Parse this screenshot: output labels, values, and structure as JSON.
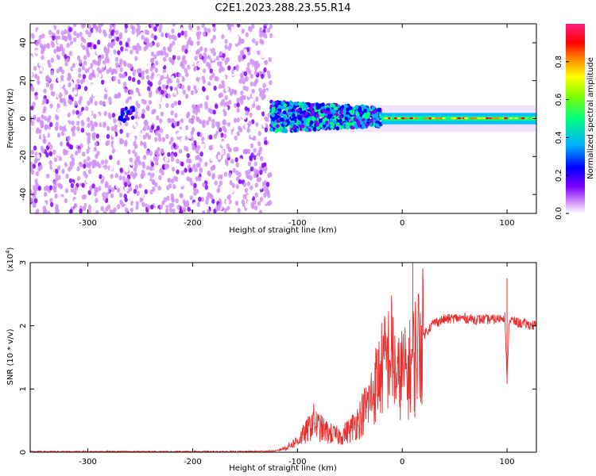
{
  "title": "C2E1.2023.288.23.55.R14",
  "chart_data": [
    {
      "type": "heatmap",
      "xlabel": "Height of straight line (km)",
      "ylabel": "Frequency (Hz)",
      "xlim": [
        -355,
        128
      ],
      "ylim": [
        -50,
        50
      ],
      "x_ticks": [
        -300,
        -200,
        -100,
        0,
        100
      ],
      "y_ticks": [
        -40,
        -20,
        0,
        20,
        40
      ],
      "colorbar": {
        "label": "Normalized spectral amplitude",
        "range": [
          0,
          1
        ],
        "ticks": [
          0.0,
          0.2,
          0.4,
          0.6,
          0.8
        ],
        "colormap": [
          "#ffffff",
          "#c080f0",
          "#7000ff",
          "#0000ff",
          "#00c0ff",
          "#00ff60",
          "#ffff00",
          "#ff7000",
          "#ff0000",
          "#ff1080"
        ]
      },
      "regions": [
        {
          "x": [
            -355,
            -125
          ],
          "description_values": {
            "freq_spread_hz": [
              -50,
              50
            ],
            "amplitude_range": [
              0.0,
              0.2
            ]
          }
        },
        {
          "x": [
            -125,
            -20
          ],
          "description_values": {
            "freq_spread_hz": [
              -8,
              8
            ],
            "amplitude_range": [
              0.2,
              0.7
            ]
          }
        },
        {
          "x": [
            -20,
            128
          ],
          "description_values": {
            "freq_spread_hz": [
              -3,
              3
            ],
            "amplitude_range": [
              0.6,
              0.95
            ]
          }
        }
      ]
    },
    {
      "type": "line",
      "xlabel": "Height of straight line (km)",
      "ylabel": "SNR (10 * v/v)",
      "y_multiplier": "(x10",
      "y_multiplier_exp": "4",
      "y_multiplier_close": ")",
      "xlim": [
        -355,
        128
      ],
      "ylim": [
        0,
        3
      ],
      "x_ticks": [
        -300,
        -200,
        -100,
        0,
        100
      ],
      "y_ticks": [
        0,
        1,
        2,
        3
      ],
      "color": "#e83030",
      "series_points": [
        [
          -355,
          0.01
        ],
        [
          -300,
          0.01
        ],
        [
          -250,
          0.01
        ],
        [
          -200,
          0.01
        ],
        [
          -150,
          0.01
        ],
        [
          -120,
          0.02
        ],
        [
          -110,
          0.08
        ],
        [
          -100,
          0.18
        ],
        [
          -90,
          0.35
        ],
        [
          -85,
          0.5
        ],
        [
          -80,
          0.4
        ],
        [
          -70,
          0.3
        ],
        [
          -60,
          0.25
        ],
        [
          -50,
          0.35
        ],
        [
          -40,
          0.55
        ],
        [
          -30,
          0.85
        ],
        [
          -25,
          1.1
        ],
        [
          -20,
          1.3
        ],
        [
          -15,
          1.45
        ],
        [
          -10,
          1.6
        ],
        [
          -5,
          1.1
        ],
        [
          0,
          1.3
        ],
        [
          5,
          1.2
        ],
        [
          10,
          1.5
        ],
        [
          15,
          1.7
        ],
        [
          20,
          1.85
        ],
        [
          25,
          1.95
        ],
        [
          30,
          2.05
        ],
        [
          40,
          2.1
        ],
        [
          50,
          2.12
        ],
        [
          60,
          2.12
        ],
        [
          70,
          2.1
        ],
        [
          80,
          2.1
        ],
        [
          90,
          2.1
        ],
        [
          98,
          2.15
        ],
        [
          100,
          1.1
        ],
        [
          102,
          2.1
        ],
        [
          110,
          2.05
        ],
        [
          120,
          2.02
        ],
        [
          128,
          2.0
        ]
      ],
      "spikes": [
        [
          -10,
          2.35
        ],
        [
          10,
          3.0
        ],
        [
          12,
          0.55
        ],
        [
          100,
          2.75
        ],
        [
          100,
          1.08
        ]
      ]
    }
  ]
}
